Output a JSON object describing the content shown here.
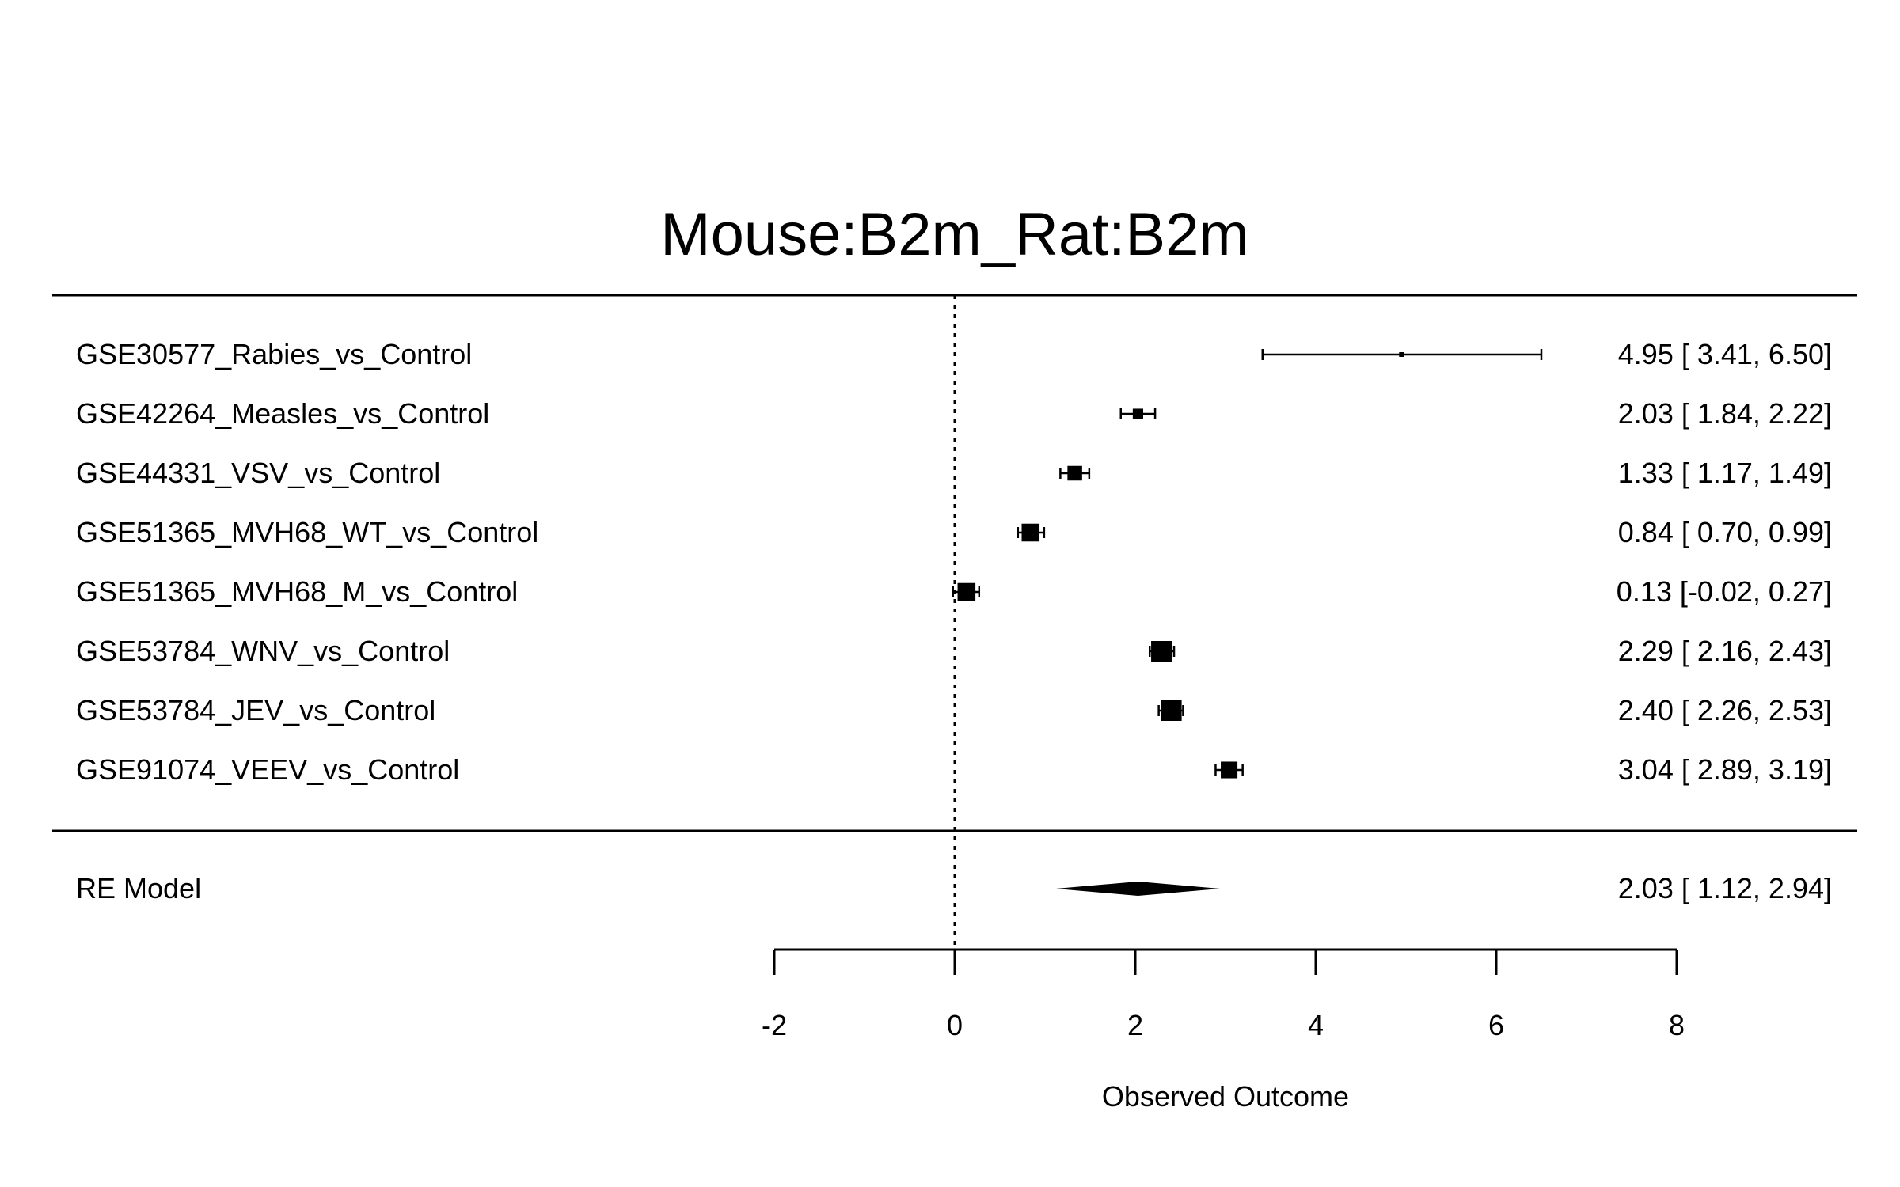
{
  "chart_data": {
    "type": "forest",
    "title": "Mouse:B2m_Rat:B2m",
    "xlabel": "Observed Outcome",
    "xlim": [
      -2,
      8
    ],
    "xticks": [
      -2,
      0,
      2,
      4,
      6,
      8
    ],
    "tick_labels": [
      "-2",
      "0",
      "2",
      "4",
      "6",
      "8"
    ],
    "reference_line": 0,
    "studies": [
      {
        "label": "GSE30577_Rabies_vs_Control",
        "estimate": 4.95,
        "ci_lower": 3.41,
        "ci_upper": 6.5,
        "text": "4.95 [ 3.41, 6.50]"
      },
      {
        "label": "GSE42264_Measles_vs_Control",
        "estimate": 2.03,
        "ci_lower": 1.84,
        "ci_upper": 2.22,
        "text": "2.03 [ 1.84, 2.22]"
      },
      {
        "label": "GSE44331_VSV_vs_Control",
        "estimate": 1.33,
        "ci_lower": 1.17,
        "ci_upper": 1.49,
        "text": "1.33 [ 1.17, 1.49]"
      },
      {
        "label": "GSE51365_MVH68_WT_vs_Control",
        "estimate": 0.84,
        "ci_lower": 0.7,
        "ci_upper": 0.99,
        "text": "0.84 [ 0.70, 0.99]"
      },
      {
        "label": "GSE51365_MVH68_M_vs_Control",
        "estimate": 0.13,
        "ci_lower": -0.02,
        "ci_upper": 0.27,
        "text": "0.13 [-0.02, 0.27]"
      },
      {
        "label": "GSE53784_WNV_vs_Control",
        "estimate": 2.29,
        "ci_lower": 2.16,
        "ci_upper": 2.43,
        "text": "2.29 [ 2.16, 2.43]"
      },
      {
        "label": "GSE53784_JEV_vs_Control",
        "estimate": 2.4,
        "ci_lower": 2.26,
        "ci_upper": 2.53,
        "text": "2.40 [ 2.26, 2.53]"
      },
      {
        "label": "GSE91074_VEEV_vs_Control",
        "estimate": 3.04,
        "ci_lower": 2.89,
        "ci_upper": 3.19,
        "text": "3.04 [ 2.89, 3.19]"
      }
    ],
    "summary": {
      "label": "RE Model",
      "estimate": 2.03,
      "ci_lower": 1.12,
      "ci_upper": 2.94,
      "text": "2.03 [ 1.12, 2.94]"
    }
  }
}
